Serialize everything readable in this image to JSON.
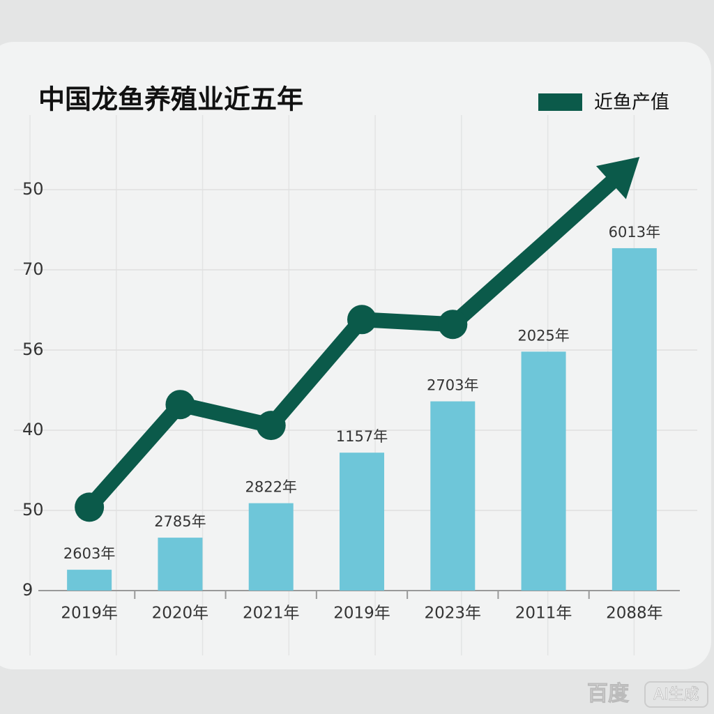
{
  "chart_data": {
    "type": "bar_line",
    "title": "中国龙鱼养殖业近五年",
    "categories": [
      "2019年",
      "2020年",
      "2021年",
      "2019年",
      "2023年",
      "2011年",
      "2088年"
    ],
    "bars": {
      "color": "#6ec6d9",
      "values": [
        0.26,
        0.66,
        1.09,
        1.72,
        2.36,
        2.98,
        4.27
      ]
    },
    "annotations": [
      "2603年",
      "2785年",
      "2822年",
      "1157年",
      "2703年",
      "2025年",
      "6013年"
    ],
    "series": [
      {
        "name": "近鱼产值",
        "color": "#0b5a4a",
        "values": [
          1.04,
          2.32,
          2.06,
          3.38,
          3.32,
          4.33,
          5.35
        ],
        "markers": [
          true,
          true,
          true,
          true,
          true,
          false,
          false
        ]
      }
    ],
    "ylim": [
      0,
      5.5
    ],
    "yticks": [
      {
        "value": 0,
        "label": "9"
      },
      {
        "value": 1,
        "label": "50"
      },
      {
        "value": 2,
        "label": "40"
      },
      {
        "value": 3,
        "label": "56"
      },
      {
        "value": 4,
        "label": "70"
      },
      {
        "value": 5,
        "label": "50"
      }
    ],
    "grid": true,
    "legend": "top-right",
    "watermark": [
      "百度",
      "AI生成"
    ]
  }
}
